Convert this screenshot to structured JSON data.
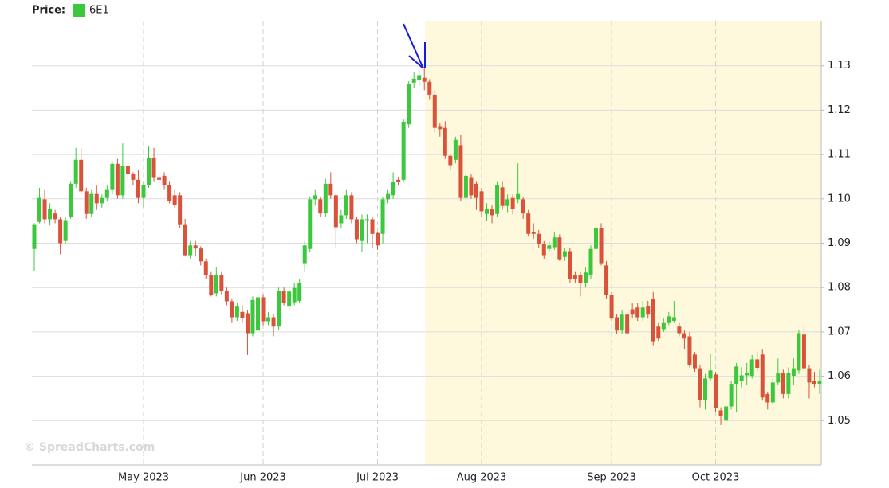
{
  "chart_data": {
    "type": "candlestick",
    "legend_label": "Price:",
    "watermark": "© SpreadCharts.com",
    "up_color": "#3cc83c",
    "down_color": "#d9523a",
    "grid": true,
    "ylim": [
      1.04,
      1.14
    ],
    "yticks": [
      1.05,
      1.06,
      1.07,
      1.08,
      1.09,
      {
        "value": 1.1,
        "label": "1.10"
      },
      1.11,
      1.12,
      1.13
    ],
    "categories": [
      null,
      null,
      null,
      null,
      null,
      null,
      null,
      null,
      null,
      null,
      null,
      null,
      null,
      null,
      null,
      null,
      null,
      null,
      null,
      null,
      null,
      "May 2023",
      null,
      null,
      null,
      null,
      null,
      null,
      null,
      null,
      null,
      null,
      null,
      null,
      null,
      null,
      null,
      null,
      null,
      null,
      null,
      null,
      null,
      null,
      "Jun 2023",
      null,
      null,
      null,
      null,
      null,
      null,
      null,
      null,
      null,
      null,
      null,
      null,
      null,
      null,
      null,
      null,
      null,
      null,
      null,
      null,
      null,
      "Jul 2023",
      null,
      null,
      null,
      null,
      null,
      null,
      null,
      null,
      null,
      null,
      null,
      null,
      null,
      null,
      null,
      null,
      null,
      null,
      null,
      "Aug 2023",
      null,
      null,
      null,
      null,
      null,
      null,
      null,
      null,
      null,
      null,
      null,
      null,
      null,
      null,
      null,
      null,
      null,
      null,
      null,
      null,
      null,
      null,
      null,
      null,
      "Sep 2023",
      null,
      null,
      null,
      null,
      null,
      null,
      null,
      null,
      null,
      null,
      null,
      null,
      null,
      null,
      null,
      null,
      null,
      null,
      null,
      "Oct 2023",
      null,
      null,
      null,
      null,
      null,
      null,
      null,
      null,
      null,
      null,
      null,
      null,
      null,
      null,
      null,
      null,
      null,
      null,
      null,
      null
    ],
    "series": [
      {
        "name": "6E1",
        "color": "#3cc83c",
        "open": [
          1.0887,
          1.0948,
          1.0999,
          1.0954,
          1.0967,
          1.0954,
          1.0905,
          1.0959,
          1.1034,
          1.1088,
          1.1017,
          1.0966,
          1.1011,
          1.099,
          1.1002,
          1.102,
          1.1079,
          1.1008,
          1.1074,
          1.1056,
          1.1043,
          1.1002,
          1.1031,
          1.1092,
          1.1049,
          1.1052,
          1.1031,
          1.1008,
          1.1008,
          1.0941,
          1.0873,
          1.0895,
          1.0888,
          1.0859,
          1.0828,
          1.0787,
          1.0829,
          1.0792,
          1.0769,
          1.0733,
          1.0745,
          1.0742,
          1.0697,
          1.0703,
          1.0778,
          1.0724,
          1.0733,
          1.0712,
          1.0793,
          1.0757,
          1.0767,
          1.077,
          1.0855,
          1.0887,
          1.0999,
          1.0999,
          1.0967,
          1.1034,
          1.1008,
          1.0945,
          1.0963,
          1.1008,
          1.0954,
          1.0905,
          1.0953,
          1.0954,
          1.0923,
          1.0921,
          1.0999,
          1.1008,
          1.1043,
          1.1043,
          1.1168,
          1.1262,
          1.1268,
          1.1273,
          1.1264,
          1.1235,
          1.1164,
          1.116,
          1.1097,
          1.1088,
          1.1121,
          1.1002,
          1.1049,
          1.1034,
          1.1017,
          1.0966,
          1.0977,
          1.0966,
          1.1026,
          1.0984,
          1.1002,
          1.0999,
          1.0999,
          1.0967,
          1.0926,
          1.0921,
          1.0898,
          1.0887,
          1.0891,
          1.0913,
          1.0869,
          1.0882,
          1.0828,
          1.0828,
          1.081,
          1.0828,
          1.0887,
          1.0934,
          1.085,
          1.0783,
          1.0733,
          1.0703,
          1.0739,
          1.0751,
          1.0755,
          1.0733,
          1.0758,
          1.0775,
          1.0712,
          1.0706,
          1.072,
          1.0725,
          1.0712,
          1.0697,
          1.069,
          1.0649,
          1.0618,
          1.0547,
          1.0595,
          1.0604,
          1.0523,
          1.05,
          1.0532,
          1.0583,
          1.059,
          1.0602,
          1.0601,
          1.0638,
          1.0649,
          1.056,
          1.0541,
          1.0586,
          1.0608,
          1.056,
          1.0601,
          1.0613,
          1.0694,
          1.0618,
          1.059,
          1.0583
        ],
        "high": [
          1.0945,
          1.1025,
          1.102,
          1.099,
          1.0975,
          1.096,
          1.0958,
          1.104,
          1.1115,
          1.1115,
          1.1025,
          1.102,
          1.103,
          1.101,
          1.103,
          1.1085,
          1.109,
          1.1125,
          1.108,
          1.106,
          1.1065,
          1.104,
          1.1118,
          1.1115,
          1.106,
          1.106,
          1.104,
          1.102,
          1.1015,
          1.0955,
          1.0905,
          1.0905,
          1.0893,
          1.0865,
          1.0835,
          1.0845,
          1.0835,
          1.08,
          1.0775,
          1.0765,
          1.076,
          1.075,
          1.078,
          1.0785,
          1.0785,
          1.0745,
          1.074,
          1.08,
          1.08,
          1.08,
          1.081,
          1.082,
          1.0905,
          1.1005,
          1.102,
          1.1005,
          1.1045,
          1.106,
          1.1015,
          1.0975,
          1.102,
          1.1015,
          1.096,
          1.0965,
          1.0965,
          1.096,
          1.0925,
          1.1005,
          1.102,
          1.106,
          1.105,
          1.118,
          1.1265,
          1.1285,
          1.129,
          1.13,
          1.127,
          1.1245,
          1.117,
          1.1175,
          1.11,
          1.114,
          1.1145,
          1.106,
          1.1055,
          1.104,
          1.1025,
          1.099,
          1.0985,
          1.104,
          1.104,
          1.101,
          1.101,
          1.108,
          1.1005,
          1.0975,
          1.0945,
          1.093,
          1.0905,
          1.0905,
          1.0925,
          1.092,
          1.089,
          1.089,
          1.0835,
          1.0835,
          1.0845,
          1.0895,
          1.095,
          1.0945,
          1.086,
          1.079,
          1.074,
          1.075,
          1.0745,
          1.0765,
          1.0765,
          1.077,
          1.077,
          1.079,
          1.072,
          1.073,
          1.0745,
          1.077,
          1.072,
          1.0705,
          1.07,
          1.0655,
          1.0625,
          1.0605,
          1.065,
          1.061,
          1.053,
          1.054,
          1.059,
          1.063,
          1.062,
          1.063,
          1.0648,
          1.0655,
          1.066,
          1.0565,
          1.0595,
          1.064,
          1.0615,
          1.062,
          1.064,
          1.0705,
          1.072,
          1.0625,
          1.061,
          1.0615
        ],
        "low": [
          1.0837,
          1.0945,
          1.0945,
          1.094,
          1.0945,
          1.0875,
          1.09,
          1.0955,
          1.1025,
          1.101,
          1.0955,
          1.096,
          1.0975,
          1.098,
          1.0995,
          1.101,
          1.1,
          1.1,
          1.104,
          1.103,
          1.099,
          1.098,
          1.1025,
          1.104,
          1.1035,
          1.102,
          1.099,
          1.098,
          1.0935,
          1.087,
          1.0865,
          1.087,
          1.085,
          1.082,
          1.078,
          1.078,
          1.0785,
          1.076,
          1.072,
          1.0725,
          1.072,
          1.0648,
          1.069,
          1.0685,
          1.0715,
          1.0715,
          1.069,
          1.0705,
          1.076,
          1.075,
          1.076,
          1.0765,
          1.0835,
          1.088,
          1.0985,
          1.096,
          1.096,
          1.1,
          1.089,
          1.0935,
          1.0955,
          1.0945,
          1.09,
          1.088,
          1.09,
          1.089,
          1.0885,
          1.09,
          1.099,
          1.1,
          1.103,
          1.104,
          1.116,
          1.125,
          1.1255,
          1.1245,
          1.1225,
          1.115,
          1.114,
          1.109,
          1.1065,
          1.108,
          1.0995,
          1.098,
          1.1,
          1.0975,
          1.096,
          1.095,
          1.0945,
          1.096,
          1.0975,
          1.097,
          1.0965,
          1.099,
          1.0955,
          1.0915,
          1.091,
          1.089,
          1.0865,
          1.088,
          1.0885,
          1.086,
          1.086,
          1.081,
          1.081,
          1.078,
          1.08,
          1.082,
          1.088,
          1.085,
          1.0775,
          1.0725,
          1.0695,
          1.0695,
          1.0695,
          1.073,
          1.0725,
          1.0725,
          1.073,
          1.067,
          1.068,
          1.07,
          1.0715,
          1.072,
          1.069,
          1.066,
          1.062,
          1.061,
          1.053,
          1.0525,
          1.059,
          1.052,
          1.049,
          1.049,
          1.0525,
          1.052,
          1.0575,
          1.058,
          1.0595,
          1.061,
          1.0545,
          1.0525,
          1.0535,
          1.058,
          1.055,
          1.055,
          1.058,
          1.0605,
          1.061,
          1.055,
          1.0575,
          1.056
        ],
        "close": [
          1.0941,
          1.1002,
          1.0954,
          1.0977,
          1.0954,
          1.09,
          1.0952,
          1.1034,
          1.1088,
          1.1017,
          1.0966,
          1.1011,
          1.099,
          1.1002,
          1.102,
          1.1079,
          1.1008,
          1.1074,
          1.1056,
          1.1043,
          1.1002,
          1.1031,
          1.1092,
          1.1049,
          1.1043,
          1.1031,
          1.0995,
          1.0986,
          1.0941,
          1.0873,
          1.0895,
          1.0888,
          1.0859,
          1.0828,
          1.0783,
          1.0829,
          1.0792,
          1.0769,
          1.0733,
          1.0757,
          1.0732,
          1.0697,
          1.0772,
          1.0778,
          1.0724,
          1.0733,
          1.0712,
          1.0793,
          1.0766,
          1.0791,
          1.0799,
          1.081,
          1.0895,
          1.0999,
          1.1008,
          1.0967,
          1.1034,
          1.1008,
          1.0936,
          1.0963,
          1.1008,
          1.0954,
          1.0909,
          1.0954,
          1.0954,
          1.0921,
          1.0895,
          1.0999,
          1.1011,
          1.1038,
          1.1038,
          1.1174,
          1.1259,
          1.1271,
          1.1279,
          1.1264,
          1.1235,
          1.116,
          1.1157,
          1.1097,
          1.1076,
          1.1133,
          1.1002,
          1.1052,
          1.1008,
          1.1002,
          1.0972,
          1.0977,
          1.0963,
          1.1031,
          1.0984,
          1.0999,
          1.0977,
          1.1011,
          1.0967,
          1.0921,
          1.0921,
          1.0898,
          1.0873,
          1.0895,
          1.0913,
          1.0864,
          1.0882,
          1.0819,
          1.0819,
          1.081,
          1.0834,
          1.0887,
          1.0934,
          1.0855,
          1.0783,
          1.073,
          1.0703,
          1.0739,
          1.0697,
          1.0739,
          1.0733,
          1.0755,
          1.0739,
          1.0679,
          1.0685,
          1.072,
          1.0735,
          1.0733,
          1.0697,
          1.0685,
          1.0626,
          1.0618,
          1.0547,
          1.0595,
          1.0613,
          1.0529,
          1.0511,
          1.0532,
          1.0583,
          1.0622,
          1.0602,
          1.0608,
          1.0638,
          1.0619,
          1.0552,
          1.0541,
          1.0586,
          1.0608,
          1.056,
          1.0608,
          1.0618,
          1.0697,
          1.0618,
          1.0586,
          1.0583,
          1.059
        ]
      }
    ]
  }
}
